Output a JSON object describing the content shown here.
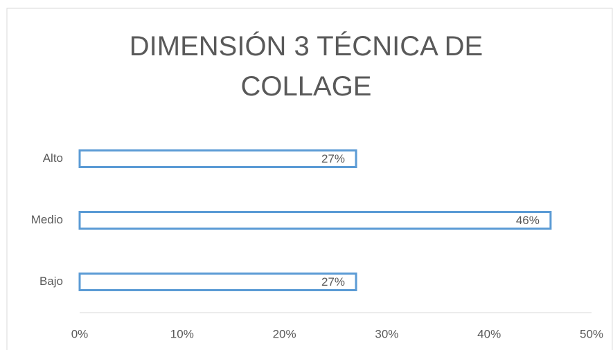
{
  "chart_data": {
    "type": "bar",
    "orientation": "horizontal",
    "title": "DIMENSIÓN 3 TÉCNICA DE COLLAGE",
    "categories": [
      "Alto",
      "Medio",
      "Bajo"
    ],
    "values": [
      27,
      46,
      27
    ],
    "value_labels": [
      "27%",
      "46%",
      "27%"
    ],
    "color": "#5b9bd5",
    "xlim": [
      0,
      50
    ],
    "xticks": [
      {
        "value": 0,
        "label": "0%"
      },
      {
        "value": 10,
        "label": "10%"
      },
      {
        "value": 20,
        "label": "20%"
      },
      {
        "value": 30,
        "label": "30%"
      },
      {
        "value": 40,
        "label": "40%"
      },
      {
        "value": 50,
        "label": "50%"
      }
    ],
    "grid": false
  }
}
